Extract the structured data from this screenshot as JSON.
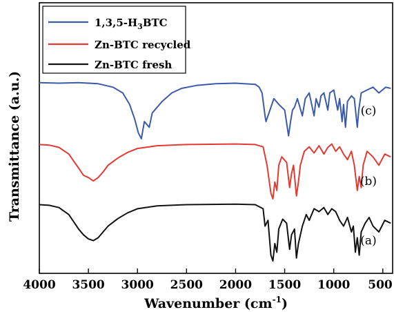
{
  "chart_data": {
    "type": "line",
    "xlabel": "Wavenumber (cm",
    "xlabel_superscript": "-1",
    "xlabel_close": ")",
    "ylabel": "Transmittance (a.u.)",
    "xlim": [
      4000,
      400
    ],
    "x_reversed": true,
    "x_ticks": [
      "4000",
      "3500",
      "3000",
      "2500",
      "2000",
      "1500",
      "1000",
      "500"
    ],
    "x_tick_values": [
      4000,
      3500,
      3000,
      2500,
      2000,
      1500,
      1000,
      500
    ],
    "y_ticks_shown": false,
    "grid": false,
    "legend_position": "top-left",
    "series": [
      {
        "name": "1,3,5-H3BTC",
        "legend_main": "1,3,5-H",
        "legend_sub": "3",
        "legend_tail": "BTC",
        "label": "(c)",
        "color": "#3b5aa8",
        "points": [
          [
            4000,
            0.98
          ],
          [
            3800,
            0.97
          ],
          [
            3600,
            0.98
          ],
          [
            3400,
            0.96
          ],
          [
            3250,
            0.9
          ],
          [
            3150,
            0.8
          ],
          [
            3080,
            0.6
          ],
          [
            3030,
            0.35
          ],
          [
            2990,
            0.1
          ],
          [
            2960,
            0.0
          ],
          [
            2930,
            0.3
          ],
          [
            2880,
            0.2
          ],
          [
            2850,
            0.45
          ],
          [
            2750,
            0.65
          ],
          [
            2650,
            0.8
          ],
          [
            2550,
            0.88
          ],
          [
            2400,
            0.93
          ],
          [
            2200,
            0.96
          ],
          [
            2000,
            0.97
          ],
          [
            1800,
            0.95
          ],
          [
            1760,
            0.9
          ],
          [
            1730,
            0.8
          ],
          [
            1700,
            0.4
          ],
          [
            1690,
            0.3
          ],
          [
            1650,
            0.5
          ],
          [
            1610,
            0.7
          ],
          [
            1560,
            0.6
          ],
          [
            1500,
            0.5
          ],
          [
            1460,
            0.05
          ],
          [
            1440,
            0.3
          ],
          [
            1420,
            0.5
          ],
          [
            1400,
            0.55
          ],
          [
            1370,
            0.7
          ],
          [
            1320,
            0.4
          ],
          [
            1290,
            0.7
          ],
          [
            1250,
            0.8
          ],
          [
            1200,
            0.4
          ],
          [
            1180,
            0.7
          ],
          [
            1150,
            0.55
          ],
          [
            1130,
            0.75
          ],
          [
            1100,
            0.8
          ],
          [
            1060,
            0.5
          ],
          [
            1040,
            0.8
          ],
          [
            1000,
            0.85
          ],
          [
            960,
            0.5
          ],
          [
            940,
            0.7
          ],
          [
            915,
            0.3
          ],
          [
            900,
            0.6
          ],
          [
            880,
            0.2
          ],
          [
            860,
            0.65
          ],
          [
            820,
            0.75
          ],
          [
            790,
            0.7
          ],
          [
            760,
            0.2
          ],
          [
            745,
            0.5
          ],
          [
            720,
            0.8
          ],
          [
            660,
            0.85
          ],
          [
            600,
            0.9
          ],
          [
            540,
            0.8
          ],
          [
            470,
            0.9
          ],
          [
            420,
            0.88
          ]
        ]
      },
      {
        "name": "Zn-BTC recycled",
        "label": "(b)",
        "color": "#e03a33",
        "points": [
          [
            4000,
            0.97
          ],
          [
            3900,
            0.96
          ],
          [
            3800,
            0.92
          ],
          [
            3700,
            0.8
          ],
          [
            3600,
            0.55
          ],
          [
            3550,
            0.42
          ],
          [
            3500,
            0.38
          ],
          [
            3450,
            0.32
          ],
          [
            3400,
            0.38
          ],
          [
            3350,
            0.48
          ],
          [
            3300,
            0.6
          ],
          [
            3200,
            0.73
          ],
          [
            3100,
            0.83
          ],
          [
            3000,
            0.9
          ],
          [
            2800,
            0.95
          ],
          [
            2500,
            0.97
          ],
          [
            2000,
            0.98
          ],
          [
            1800,
            0.97
          ],
          [
            1720,
            0.93
          ],
          [
            1680,
            0.6
          ],
          [
            1640,
            0.1
          ],
          [
            1620,
            0.0
          ],
          [
            1600,
            0.3
          ],
          [
            1580,
            0.15
          ],
          [
            1560,
            0.6
          ],
          [
            1530,
            0.75
          ],
          [
            1480,
            0.65
          ],
          [
            1450,
            0.2
          ],
          [
            1430,
            0.45
          ],
          [
            1410,
            0.6
          ],
          [
            1380,
            0.05
          ],
          [
            1360,
            0.3
          ],
          [
            1340,
            0.6
          ],
          [
            1300,
            0.85
          ],
          [
            1250,
            0.93
          ],
          [
            1200,
            0.82
          ],
          [
            1150,
            0.95
          ],
          [
            1100,
            0.8
          ],
          [
            1060,
            0.92
          ],
          [
            1020,
            0.98
          ],
          [
            980,
            0.85
          ],
          [
            940,
            0.93
          ],
          [
            900,
            0.8
          ],
          [
            860,
            0.7
          ],
          [
            820,
            0.85
          ],
          [
            790,
            0.6
          ],
          [
            760,
            0.15
          ],
          [
            740,
            0.4
          ],
          [
            720,
            0.2
          ],
          [
            700,
            0.6
          ],
          [
            660,
            0.85
          ],
          [
            600,
            0.75
          ],
          [
            540,
            0.6
          ],
          [
            480,
            0.8
          ],
          [
            420,
            0.75
          ]
        ]
      },
      {
        "name": "Zn-BTC fresh",
        "label": "(a)",
        "color": "#111111",
        "points": [
          [
            4000,
            0.97
          ],
          [
            3900,
            0.96
          ],
          [
            3800,
            0.92
          ],
          [
            3700,
            0.8
          ],
          [
            3600,
            0.55
          ],
          [
            3550,
            0.45
          ],
          [
            3500,
            0.38
          ],
          [
            3450,
            0.35
          ],
          [
            3400,
            0.4
          ],
          [
            3350,
            0.5
          ],
          [
            3300,
            0.6
          ],
          [
            3200,
            0.73
          ],
          [
            3100,
            0.83
          ],
          [
            3000,
            0.9
          ],
          [
            2800,
            0.95
          ],
          [
            2500,
            0.97
          ],
          [
            2000,
            0.98
          ],
          [
            1800,
            0.97
          ],
          [
            1720,
            0.9
          ],
          [
            1700,
            0.6
          ],
          [
            1670,
            0.7
          ],
          [
            1640,
            0.1
          ],
          [
            1620,
            0.0
          ],
          [
            1600,
            0.3
          ],
          [
            1580,
            0.15
          ],
          [
            1560,
            0.55
          ],
          [
            1520,
            0.72
          ],
          [
            1480,
            0.65
          ],
          [
            1450,
            0.2
          ],
          [
            1430,
            0.45
          ],
          [
            1400,
            0.55
          ],
          [
            1380,
            0.05
          ],
          [
            1360,
            0.3
          ],
          [
            1320,
            0.6
          ],
          [
            1280,
            0.8
          ],
          [
            1250,
            0.7
          ],
          [
            1200,
            0.9
          ],
          [
            1150,
            0.85
          ],
          [
            1100,
            0.92
          ],
          [
            1060,
            0.8
          ],
          [
            1020,
            0.9
          ],
          [
            980,
            0.85
          ],
          [
            940,
            0.7
          ],
          [
            900,
            0.6
          ],
          [
            860,
            0.75
          ],
          [
            820,
            0.5
          ],
          [
            800,
            0.6
          ],
          [
            780,
            0.15
          ],
          [
            760,
            0.4
          ],
          [
            740,
            0.1
          ],
          [
            720,
            0.5
          ],
          [
            680,
            0.65
          ],
          [
            640,
            0.75
          ],
          [
            600,
            0.6
          ],
          [
            540,
            0.5
          ],
          [
            480,
            0.7
          ],
          [
            420,
            0.65
          ]
        ]
      }
    ]
  }
}
